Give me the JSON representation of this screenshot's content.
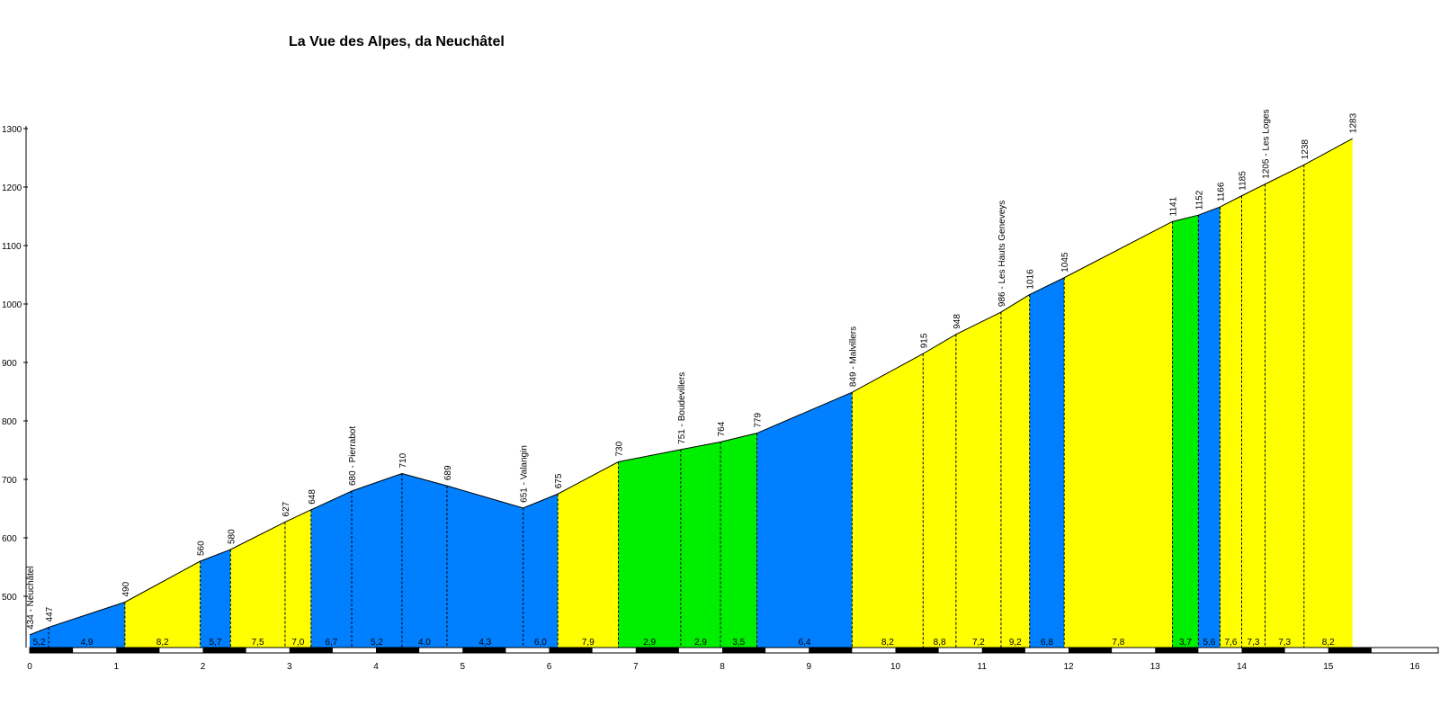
{
  "chart_data": {
    "type": "area",
    "title": "La Vue des Alpes, da Neuchâtel",
    "xlabel": "",
    "ylabel": "",
    "xlim": [
      0,
      16
    ],
    "ylim": [
      420,
      1300
    ],
    "x_ticks": [
      "0",
      "1",
      "2",
      "3",
      "4",
      "5",
      "6",
      "7",
      "8",
      "9",
      "10",
      "11",
      "12",
      "13",
      "14",
      "15",
      "16"
    ],
    "y_ticks": [
      "500",
      "600",
      "700",
      "800",
      "900",
      "1000",
      "1100",
      "1200",
      "1300"
    ],
    "colors": {
      "yellow": "#ffff00",
      "blue": "#0080ff",
      "green": "#00ee00",
      "outline": "#000000"
    },
    "points": [
      {
        "x": 0.0,
        "y": 434,
        "label": "434 - Neuchâtel"
      },
      {
        "x": 0.22,
        "y": 447,
        "label": "447"
      },
      {
        "x": 1.1,
        "y": 490,
        "label": "490"
      },
      {
        "x": 1.97,
        "y": 560,
        "label": "560"
      },
      {
        "x": 2.32,
        "y": 580,
        "label": "580"
      },
      {
        "x": 2.95,
        "y": 627,
        "label": "627"
      },
      {
        "x": 3.25,
        "y": 648,
        "label": "648"
      },
      {
        "x": 3.72,
        "y": 680,
        "label": "680 - Pierrabot"
      },
      {
        "x": 4.3,
        "y": 710,
        "label": "710"
      },
      {
        "x": 4.82,
        "y": 689,
        "label": "689"
      },
      {
        "x": 5.7,
        "y": 651,
        "label": "651 - Valangin"
      },
      {
        "x": 6.1,
        "y": 675,
        "label": "675"
      },
      {
        "x": 6.8,
        "y": 730,
        "label": "730"
      },
      {
        "x": 7.52,
        "y": 751,
        "label": "751 - Boudevillers"
      },
      {
        "x": 7.98,
        "y": 764,
        "label": "764"
      },
      {
        "x": 8.4,
        "y": 779,
        "label": "779"
      },
      {
        "x": 9.5,
        "y": 849,
        "label": "849 - Malvillers"
      },
      {
        "x": 10.32,
        "y": 915,
        "label": "915"
      },
      {
        "x": 10.7,
        "y": 948,
        "label": "948"
      },
      {
        "x": 11.22,
        "y": 986,
        "label": "986 - Les Hauts Geneveys"
      },
      {
        "x": 11.55,
        "y": 1016,
        "label": "1016"
      },
      {
        "x": 11.95,
        "y": 1045,
        "label": "1045"
      },
      {
        "x": 13.2,
        "y": 1141,
        "label": "1141"
      },
      {
        "x": 13.5,
        "y": 1152,
        "label": "1152"
      },
      {
        "x": 13.75,
        "y": 1166,
        "label": "1166"
      },
      {
        "x": 14.0,
        "y": 1185,
        "label": "1185"
      },
      {
        "x": 14.27,
        "y": 1205,
        "label": "1205 - Les Loges"
      },
      {
        "x": 14.72,
        "y": 1238,
        "label": "1238"
      },
      {
        "x": 15.28,
        "y": 1283,
        "label": "1283"
      }
    ],
    "segments": [
      {
        "from": 0.0,
        "to": 0.22,
        "gradient": "5,2",
        "color": "blue"
      },
      {
        "from": 0.22,
        "to": 1.1,
        "gradient": "4,9",
        "color": "blue"
      },
      {
        "from": 1.1,
        "to": 1.97,
        "gradient": "8,2",
        "color": "yellow"
      },
      {
        "from": 1.97,
        "to": 2.32,
        "gradient": "5,7",
        "color": "blue"
      },
      {
        "from": 2.32,
        "to": 2.95,
        "gradient": "7,5",
        "color": "yellow"
      },
      {
        "from": 2.95,
        "to": 3.25,
        "gradient": "7,0",
        "color": "yellow"
      },
      {
        "from": 3.25,
        "to": 3.72,
        "gradient": "6,7",
        "color": "blue"
      },
      {
        "from": 3.72,
        "to": 4.3,
        "gradient": "5,2",
        "color": "blue"
      },
      {
        "from": 4.3,
        "to": 4.82,
        "gradient": "4,0",
        "color": "blue"
      },
      {
        "from": 4.82,
        "to": 5.7,
        "gradient": "4,3",
        "color": "blue"
      },
      {
        "from": 5.7,
        "to": 6.1,
        "gradient": "6,0",
        "color": "blue"
      },
      {
        "from": 6.1,
        "to": 6.8,
        "gradient": "7,9",
        "color": "yellow"
      },
      {
        "from": 6.8,
        "to": 7.52,
        "gradient": "2,9",
        "color": "green"
      },
      {
        "from": 7.52,
        "to": 7.98,
        "gradient": "2,9",
        "color": "green"
      },
      {
        "from": 7.98,
        "to": 8.4,
        "gradient": "3,5",
        "color": "green"
      },
      {
        "from": 8.4,
        "to": 9.5,
        "gradient": "6,4",
        "color": "blue"
      },
      {
        "from": 9.5,
        "to": 10.32,
        "gradient": "8,2",
        "color": "yellow"
      },
      {
        "from": 10.32,
        "to": 10.7,
        "gradient": "8,8",
        "color": "yellow"
      },
      {
        "from": 10.7,
        "to": 11.22,
        "gradient": "7,2",
        "color": "yellow"
      },
      {
        "from": 11.22,
        "to": 11.55,
        "gradient": "9,2",
        "color": "yellow"
      },
      {
        "from": 11.55,
        "to": 11.95,
        "gradient": "6,8",
        "color": "blue"
      },
      {
        "from": 11.95,
        "to": 13.2,
        "gradient": "7,8",
        "color": "yellow"
      },
      {
        "from": 13.2,
        "to": 13.5,
        "gradient": "3,7",
        "color": "green"
      },
      {
        "from": 13.5,
        "to": 13.75,
        "gradient": "5,6",
        "color": "blue"
      },
      {
        "from": 13.75,
        "to": 14.0,
        "gradient": "7,6",
        "color": "yellow"
      },
      {
        "from": 14.0,
        "to": 14.27,
        "gradient": "7,3",
        "color": "yellow"
      },
      {
        "from": 14.27,
        "to": 14.72,
        "gradient": "7,3",
        "color": "yellow"
      },
      {
        "from": 14.72,
        "to": 15.28,
        "gradient": "8,2",
        "color": "yellow"
      }
    ]
  }
}
